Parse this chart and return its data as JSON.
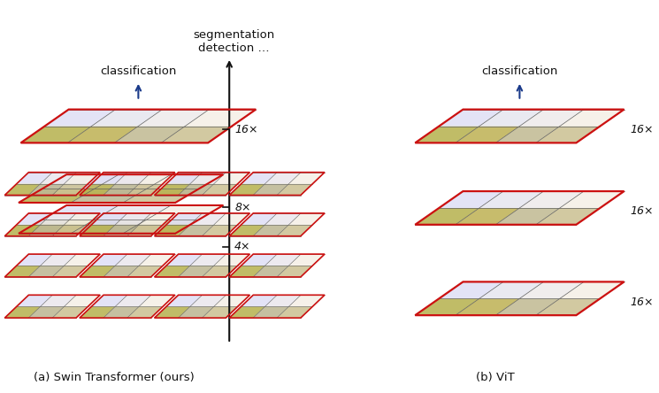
{
  "fig_width": 7.45,
  "fig_height": 4.44,
  "bg_color": "#ffffff",
  "swin_label": "(a) Swin Transformer (ours)",
  "vit_label": "(b) ViT",
  "classification_left": "classification",
  "classification_right": "classification",
  "seg_det": "segmentation\ndetection …",
  "scales_swin": [
    "16×",
    "8×",
    "4×"
  ],
  "scales_vit": [
    "16×",
    "16×",
    "16×"
  ],
  "arrow_color": "#1a3a8a",
  "grid_color": "#606060",
  "border_color": "#cc1111",
  "axis_color": "#111111",
  "text_color": "#111111"
}
